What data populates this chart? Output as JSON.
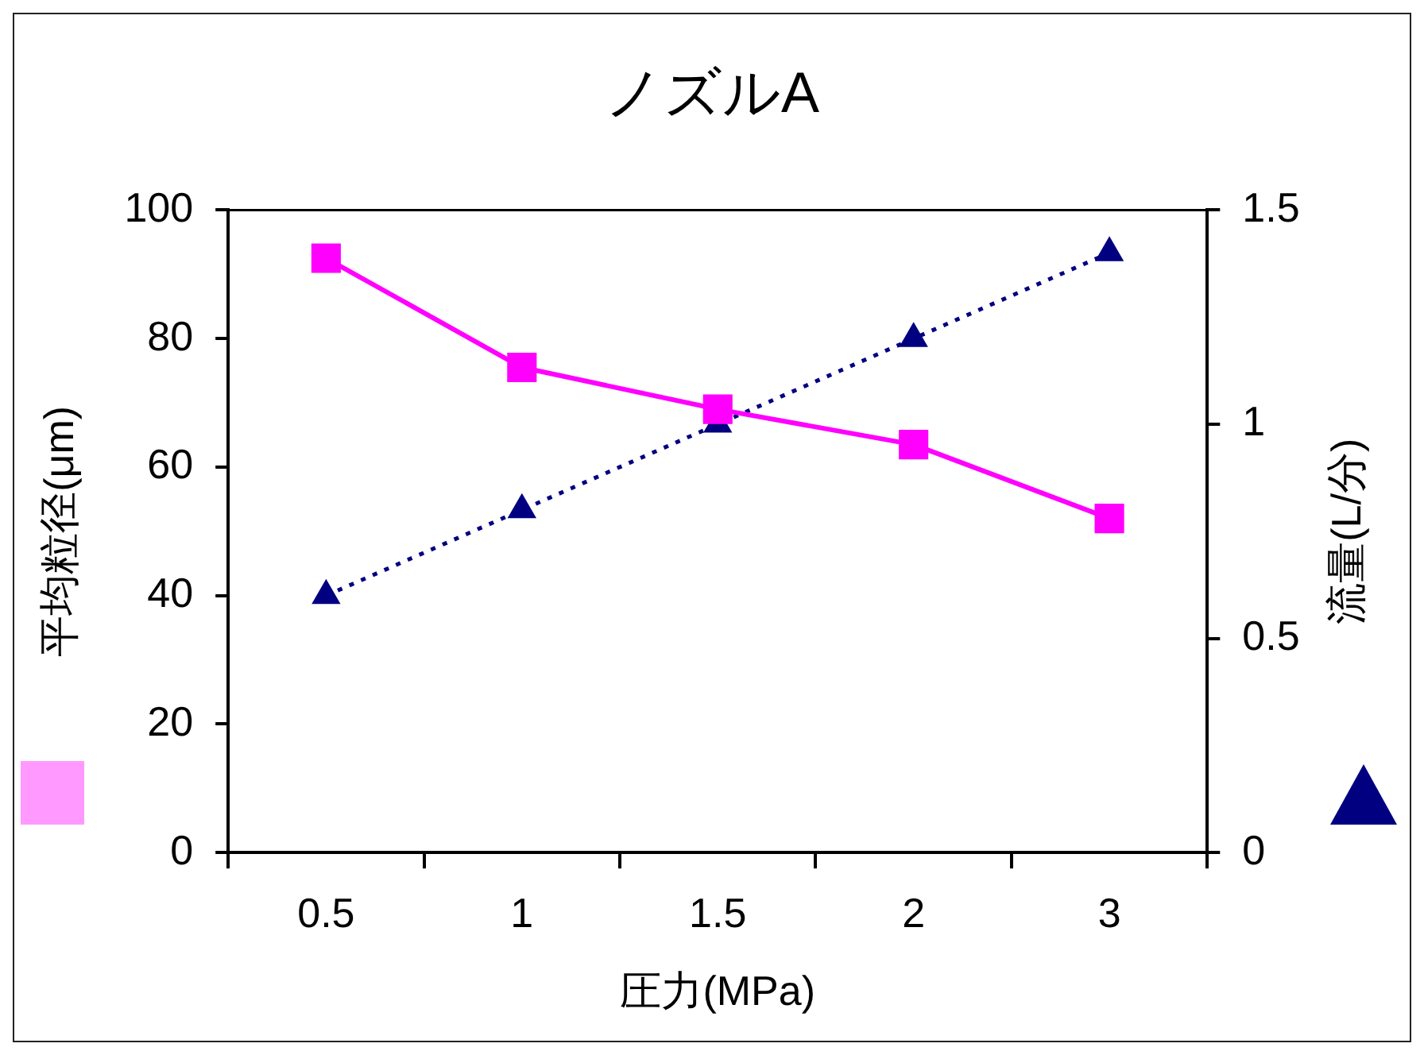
{
  "chart_data": {
    "type": "line",
    "title": "ノズルA",
    "xlabel": "圧力(MPa)",
    "ylabel": "平均粒径(μm)",
    "y2label": "流量(L/分)",
    "categories": [
      "0.5",
      "1",
      "1.5",
      "2",
      "3"
    ],
    "series": [
      {
        "color": "#ff00ff",
        "values": [
          92.5,
          75.5,
          69,
          63.5,
          52
        ],
        "marker": "square",
        "line_style": "solid"
      },
      {
        "color": "#000080",
        "values": [
          0.6,
          0.8,
          1.0,
          1.2,
          1.4
        ],
        "marker": "triangle",
        "line_style": "dotted",
        "axis": "y2"
      }
    ],
    "ylim": [
      0,
      100
    ],
    "yticks": [
      0,
      20,
      40,
      60,
      80,
      100
    ],
    "y2lim": [
      0,
      1.5
    ],
    "y2ticks": [
      0,
      0.5,
      1,
      1.5
    ],
    "grid": false,
    "legend": false
  }
}
